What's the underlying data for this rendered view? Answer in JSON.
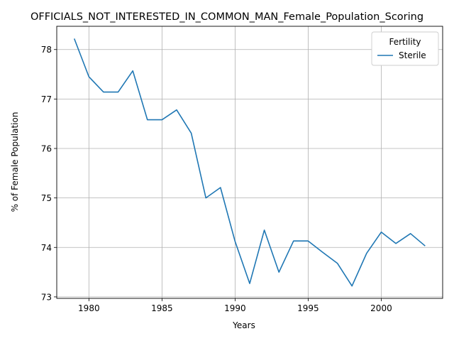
{
  "chart_data": {
    "type": "line",
    "title": "OFFICIALS_NOT_INTERESTED_IN_COMMON_MAN_Female_Population_Scoring",
    "xlabel": "Years",
    "ylabel": "% of Female Population",
    "xlim": [
      1977.8,
      2004.2
    ],
    "ylim": [
      72.97,
      78.47
    ],
    "xticks": [
      1980,
      1985,
      1990,
      1995,
      2000
    ],
    "yticks": [
      73,
      74,
      75,
      76,
      77,
      78
    ],
    "grid": true,
    "legend": {
      "title": "Fertility",
      "placement": "top-right"
    },
    "series": [
      {
        "name": "Sterile",
        "color": "#1f77b4",
        "x": [
          1979,
          1980,
          1981,
          1982,
          1983,
          1984,
          1985,
          1986,
          1987,
          1988,
          1989,
          1990,
          1991,
          1992,
          1993,
          1994,
          1995,
          1996,
          1997,
          1998,
          1999,
          2000,
          2001,
          2002,
          2003
        ],
        "y": [
          78.22,
          77.45,
          77.14,
          77.14,
          77.57,
          76.58,
          76.58,
          76.78,
          76.31,
          75.0,
          75.21,
          74.12,
          73.27,
          74.35,
          73.5,
          74.13,
          74.13,
          73.9,
          73.68,
          73.22,
          73.88,
          74.31,
          74.08,
          74.28,
          74.03
        ]
      }
    ]
  }
}
